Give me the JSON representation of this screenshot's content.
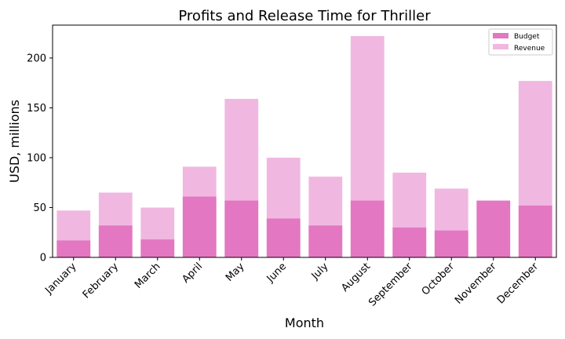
{
  "chart_data": {
    "type": "bar",
    "title": "Profits and Release Time for Thriller",
    "xlabel": "Month",
    "ylabel": "USD, millions",
    "categories": [
      "January",
      "February",
      "March",
      "April",
      "May",
      "June",
      "July",
      "August",
      "September",
      "October",
      "November",
      "December"
    ],
    "series": [
      {
        "name": "Budget",
        "color": "#e377c2",
        "values": [
          17,
          32,
          18,
          61,
          57,
          39,
          32,
          57,
          30,
          27,
          57,
          52
        ]
      },
      {
        "name": "Revenue",
        "color": "#f0b8e0",
        "values": [
          47,
          65,
          50,
          91,
          159,
          100,
          81,
          222,
          85,
          69,
          0,
          177
        ]
      }
    ],
    "ylim": [
      0,
      233
    ],
    "yticks": [
      0,
      50,
      100,
      150,
      200
    ],
    "legend": "top-right",
    "grid": false
  }
}
